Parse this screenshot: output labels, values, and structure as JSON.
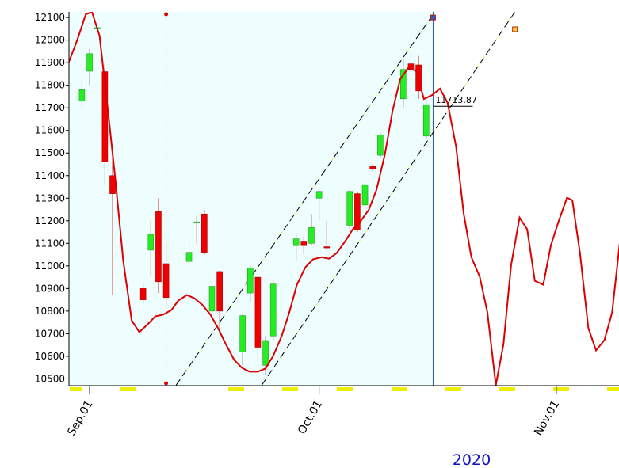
{
  "chart_data": {
    "type": "candlestick",
    "x": [
      -1,
      0,
      1,
      2,
      3,
      7,
      8,
      9,
      10,
      13,
      14,
      15,
      16,
      17,
      20,
      21,
      22,
      23,
      24,
      27,
      28,
      29,
      30,
      31,
      34,
      35,
      36,
      37,
      38,
      41,
      42,
      43,
      44
    ],
    "open": [
      11730,
      11862,
      12050,
      11860,
      11400,
      10900,
      11070,
      11240,
      11010,
      11020,
      11190,
      11230,
      10800,
      10975,
      10620,
      10880,
      10950,
      10560,
      10690,
      11090,
      11110,
      11100,
      11300,
      11085,
      11180,
      11320,
      11270,
      11440,
      11490,
      11740,
      11895,
      11890,
      11575
    ],
    "high": [
      11830,
      11960,
      12060,
      11900,
      11530,
      10920,
      11200,
      11300,
      11100,
      11120,
      11220,
      11250,
      10950,
      10980,
      10790,
      11000,
      10960,
      10690,
      10940,
      11140,
      11130,
      11230,
      11340,
      11200,
      11340,
      11330,
      11380,
      11450,
      11590,
      11920,
      11940,
      11930,
      11730
    ],
    "low": [
      11700,
      11800,
      12040,
      11360,
      10870,
      10830,
      10960,
      10880,
      10800,
      10980,
      11100,
      11050,
      10780,
      10700,
      10560,
      10840,
      10580,
      10520,
      10670,
      11020,
      11050,
      11090,
      11200,
      11070,
      11160,
      11150,
      11230,
      11420,
      11480,
      11700,
      11840,
      11740,
      11560
    ],
    "close": [
      11780,
      11940,
      12055,
      11460,
      11320,
      10850,
      11140,
      10930,
      10860,
      11060,
      11195,
      11060,
      10910,
      10800,
      10780,
      10990,
      10640,
      10670,
      10920,
      11120,
      11090,
      11170,
      11330,
      11080,
      11330,
      11160,
      11360,
      11430,
      11580,
      11870,
      11870,
      11775,
      11714
    ],
    "up_color": "#22ee22",
    "down_color": "#ee0000",
    "last_price_label": "11713.87",
    "smooth_line": {
      "color": "#dd0000",
      "x": [
        -2.7,
        -1.6,
        -0.5,
        0.3,
        1.3,
        2.4,
        3.4,
        4.4,
        5.5,
        6.5,
        7.6,
        8.6,
        9.6,
        10.7,
        11.6,
        12.7,
        13.7,
        14.7,
        15.8,
        16.8,
        17.8,
        18.9,
        19.9,
        20.9,
        22.0,
        23.0,
        24.0,
        25.1,
        26.1,
        27.1,
        28.2,
        29.2,
        30.3,
        31.3,
        32.3,
        33.4,
        34.4,
        35.4,
        36.5,
        37.5,
        38.6,
        39.6,
        40.6,
        41.7,
        42.7,
        43.7,
        44.8,
        45.8,
        46.8,
        47.9,
        48.9,
        49.9,
        51.0,
        52.0,
        53.1,
        54.1,
        55.1,
        56.2,
        57.2,
        58.2,
        59.3,
        60.3,
        61.3,
        62.4,
        63.1,
        64.1,
        65.2,
        66.2,
        67.3,
        68.3,
        69.3
      ],
      "values": [
        11904,
        12002,
        12114,
        12125,
        12019,
        11687,
        11372,
        11022,
        10759,
        10707,
        10742,
        10777,
        10784,
        10805,
        10847,
        10871,
        10857,
        10829,
        10784,
        10724,
        10654,
        10584,
        10549,
        10532,
        10532,
        10546,
        10602,
        10689,
        10794,
        10917,
        10994,
        11029,
        11039,
        11032,
        11057,
        11109,
        11162,
        11197,
        11249,
        11337,
        11494,
        11687,
        11827,
        11879,
        11862,
        11739,
        11757,
        11785,
        11722,
        11529,
        11232,
        11039,
        10952,
        10794,
        10472,
        10654,
        11004,
        11214,
        11162,
        10934,
        10917,
        11092,
        11197,
        11302,
        11291,
        11057,
        10724,
        10626,
        10672,
        10794,
        11102
      ]
    },
    "channel_lines": [
      {
        "x": [
          11.3,
          44.9
        ],
        "values": [
          10472,
          12114
        ]
      },
      {
        "x": [
          22.5,
          55.6
        ],
        "values": [
          10472,
          12125
        ]
      }
    ],
    "cursor_x": 10,
    "history_end_x": 44.9,
    "xlim": [
      -2.7,
      69.2
    ],
    "xticks": [
      {
        "value": 0,
        "label": "Sep.01"
      },
      {
        "value": 30,
        "label": "Oct.01"
      },
      {
        "value": 61,
        "label": "Nov.01"
      }
    ],
    "ylim": [
      10470,
      12125
    ],
    "yticks": [
      10500,
      10600,
      10700,
      10800,
      10900,
      11000,
      11100,
      11200,
      11300,
      11400,
      11500,
      11600,
      11700,
      11800,
      11900,
      12000,
      12100
    ],
    "year_label": "2020"
  }
}
